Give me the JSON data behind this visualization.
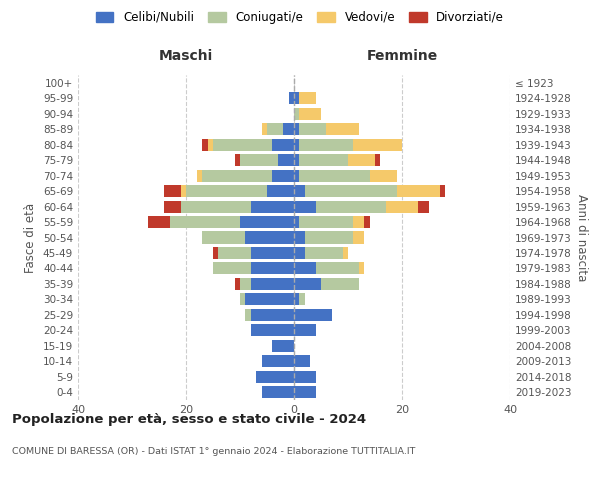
{
  "age_groups": [
    "0-4",
    "5-9",
    "10-14",
    "15-19",
    "20-24",
    "25-29",
    "30-34",
    "35-39",
    "40-44",
    "45-49",
    "50-54",
    "55-59",
    "60-64",
    "65-69",
    "70-74",
    "75-79",
    "80-84",
    "85-89",
    "90-94",
    "95-99",
    "100+"
  ],
  "birth_years": [
    "2019-2023",
    "2014-2018",
    "2009-2013",
    "2004-2008",
    "1999-2003",
    "1994-1998",
    "1989-1993",
    "1984-1988",
    "1979-1983",
    "1974-1978",
    "1969-1973",
    "1964-1968",
    "1959-1963",
    "1954-1958",
    "1949-1953",
    "1944-1948",
    "1939-1943",
    "1934-1938",
    "1929-1933",
    "1924-1928",
    "≤ 1923"
  ],
  "maschi": {
    "celibi": [
      6,
      7,
      6,
      4,
      8,
      8,
      9,
      8,
      8,
      8,
      9,
      10,
      8,
      5,
      4,
      3,
      4,
      2,
      0,
      1,
      0
    ],
    "coniugati": [
      0,
      0,
      0,
      0,
      0,
      1,
      1,
      2,
      7,
      6,
      8,
      13,
      13,
      15,
      13,
      7,
      11,
      3,
      0,
      0,
      0
    ],
    "vedovi": [
      0,
      0,
      0,
      0,
      0,
      0,
      0,
      0,
      0,
      0,
      0,
      0,
      0,
      1,
      1,
      0,
      1,
      1,
      0,
      0,
      0
    ],
    "divorziati": [
      0,
      0,
      0,
      0,
      0,
      0,
      0,
      1,
      0,
      1,
      0,
      4,
      3,
      3,
      0,
      1,
      1,
      0,
      0,
      0,
      0
    ]
  },
  "femmine": {
    "nubili": [
      4,
      4,
      3,
      0,
      4,
      7,
      1,
      5,
      4,
      2,
      2,
      1,
      4,
      2,
      1,
      1,
      1,
      1,
      0,
      1,
      0
    ],
    "coniugate": [
      0,
      0,
      0,
      0,
      0,
      0,
      1,
      7,
      8,
      7,
      9,
      10,
      13,
      17,
      13,
      9,
      10,
      5,
      1,
      0,
      0
    ],
    "vedove": [
      0,
      0,
      0,
      0,
      0,
      0,
      0,
      0,
      1,
      1,
      2,
      2,
      6,
      8,
      5,
      5,
      9,
      6,
      4,
      3,
      0
    ],
    "divorziate": [
      0,
      0,
      0,
      0,
      0,
      0,
      0,
      0,
      0,
      0,
      0,
      1,
      2,
      1,
      0,
      1,
      0,
      0,
      0,
      0,
      0
    ]
  },
  "colors": {
    "celibi": "#4472c4",
    "coniugati": "#b5c9a0",
    "vedovi": "#f5c96a",
    "divorziati": "#c0392b"
  },
  "title": "Popolazione per età, sesso e stato civile - 2024",
  "subtitle": "COMUNE DI BARESSA (OR) - Dati ISTAT 1° gennaio 2024 - Elaborazione TUTTITALIA.IT",
  "xlabel_left": "Maschi",
  "xlabel_right": "Femmine",
  "ylabel_left": "Fasce di età",
  "ylabel_right": "Anni di nascita",
  "legend_labels": [
    "Celibi/Nubili",
    "Coniugati/e",
    "Vedovi/e",
    "Divorziati/e"
  ],
  "xlim": 40,
  "background_color": "#ffffff"
}
